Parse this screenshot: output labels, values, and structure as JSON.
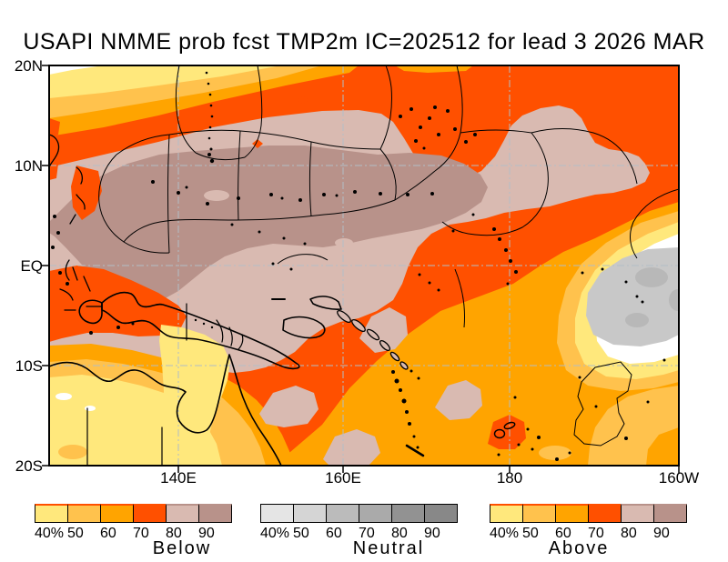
{
  "title": "USAPI NMME prob fcst TMP2m IC=202512 for lead 3 2026 MAR",
  "axes": {
    "lat": [
      "20N",
      "10N",
      "EQ",
      "10S",
      "20S"
    ],
    "lon": [
      "140E",
      "160E",
      "180",
      "160W"
    ]
  },
  "colorbars": [
    {
      "name": "Below",
      "labels": [
        "40%",
        "50",
        "60",
        "70",
        "80",
        "90"
      ],
      "colors": [
        "#FFE87C",
        "#FFC24D",
        "#FFA400",
        "#FF5000",
        "#D9BAB1",
        "#B8928A"
      ]
    },
    {
      "name": "Neutral",
      "labels": [
        "40%",
        "50",
        "60",
        "70",
        "80",
        "90"
      ],
      "colors": [
        "#E5E5E5",
        "#D5D5D5",
        "#BBBBBB",
        "#AAAAAA",
        "#929292",
        "#888888"
      ]
    },
    {
      "name": "Above",
      "labels": [
        "40%",
        "50",
        "60",
        "70",
        "80",
        "90"
      ],
      "colors": [
        "#FFE87C",
        "#FFC24D",
        "#FFA400",
        "#FF5000",
        "#D9BAB1",
        "#B8928A"
      ]
    }
  ],
  "map": {
    "probability_categories": [
      "Below",
      "Neutral",
      "Above"
    ],
    "fill_colors": {
      "p40": "#FFE87C",
      "p50": "#FFC24D",
      "p60": "#FFA400",
      "p70": "#FF5000",
      "p80": "#D9BAB1",
      "p90": "#B8928A",
      "neutral_region": "#C8C8C8",
      "sub40_region": "#FFFFFF"
    }
  }
}
